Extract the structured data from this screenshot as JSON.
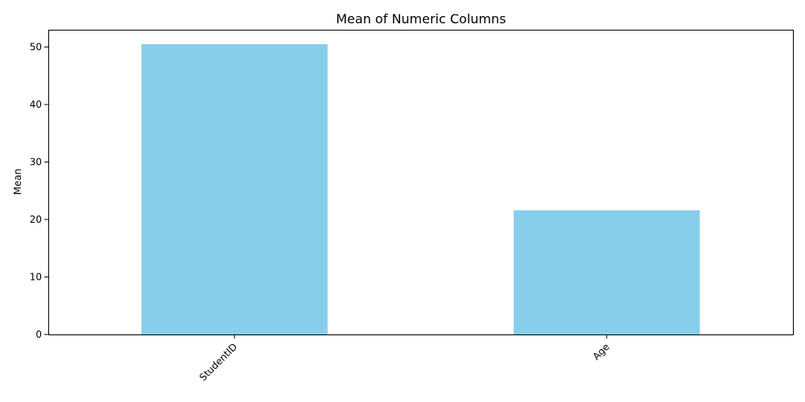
{
  "chart_data": {
    "type": "bar",
    "title": "Mean of Numeric Columns",
    "xlabel": "",
    "ylabel": "Mean",
    "categories": [
      "StudentID",
      "Age"
    ],
    "values": [
      50.5,
      21.6
    ],
    "ylim": [
      0,
      53
    ],
    "yticks": [
      "0",
      "10",
      "20",
      "30",
      "40",
      "50"
    ],
    "bar_color": "#87ceeb",
    "grid": false,
    "legend": "none"
  }
}
